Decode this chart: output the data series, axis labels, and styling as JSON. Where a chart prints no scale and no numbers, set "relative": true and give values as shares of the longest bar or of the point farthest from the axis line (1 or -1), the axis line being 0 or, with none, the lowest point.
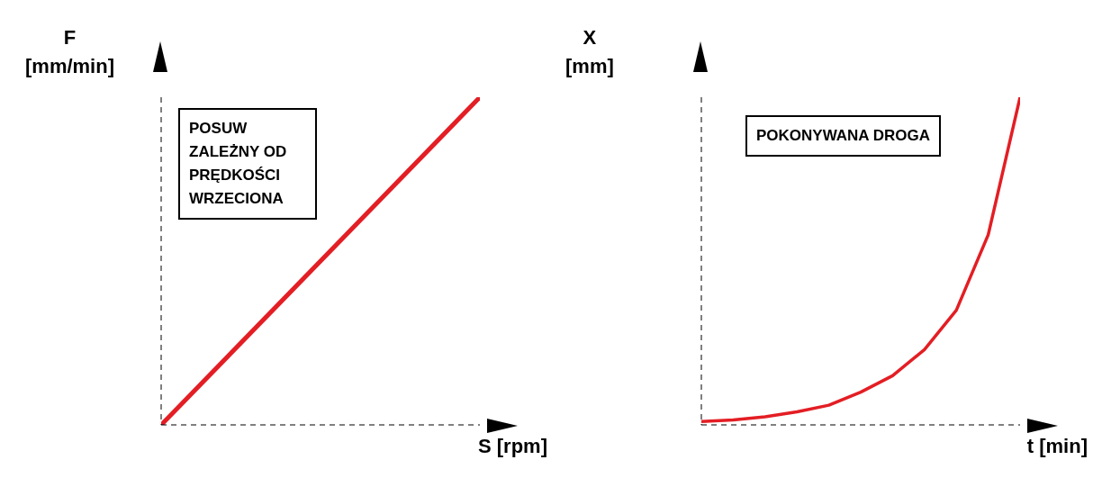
{
  "chart_data": [
    {
      "type": "line",
      "relative": true,
      "xlabel": "S [rpm]",
      "ylabel": "F [mm/min]",
      "annotations": [
        "POSUW ZALEŻNY OD PRĘDKOŚCI WRZECIONA"
      ],
      "categories": [
        null,
        null
      ],
      "series": [
        {
          "color": "#e31e24",
          "values": [
            0,
            1
          ]
        }
      ],
      "marker": "none",
      "line_style": "solid"
    },
    {
      "type": "line",
      "relative": true,
      "xlabel": "t [min]",
      "ylabel": "X [mm]",
      "annotations": [
        "POKONYWANA DROGA"
      ],
      "categories": [
        null,
        null,
        null,
        null,
        null,
        null,
        null,
        null,
        null,
        null,
        null
      ],
      "series": [
        {
          "color": "#e31e24",
          "values": [
            0.01,
            0.015,
            0.025,
            0.04,
            0.06,
            0.1,
            0.15,
            0.23,
            0.35,
            0.58,
            1
          ]
        }
      ],
      "marker": "none",
      "line_style": "solid"
    }
  ]
}
